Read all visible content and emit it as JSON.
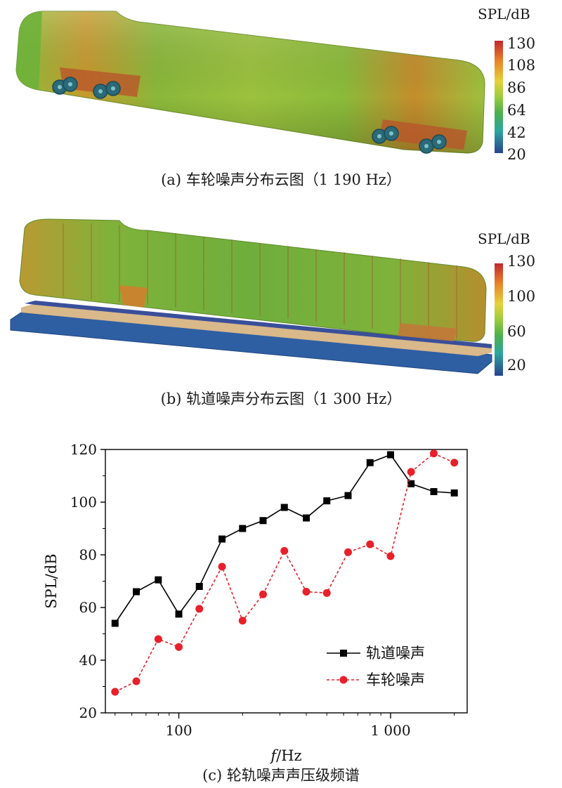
{
  "figure": {
    "panel_a": {
      "caption": "(a) 车轮噪声分布云图（1 190 Hz）",
      "colorbar": {
        "title": "SPL/dB",
        "ticks": [
          "130",
          "108",
          "86",
          "64",
          "42",
          "20"
        ],
        "colors": [
          "#c0272d",
          "#e8832a",
          "#e6d23a",
          "#9ccc3c",
          "#4db04a",
          "#2ea6a0",
          "#27438f"
        ]
      }
    },
    "panel_b": {
      "caption": "(b) 轨道噪声分布云图（1 300 Hz）",
      "colorbar": {
        "title": "SPL/dB",
        "ticks": [
          "130",
          "100",
          "60",
          "20"
        ],
        "colors": [
          "#c0272d",
          "#e8832a",
          "#e6d23a",
          "#9ccc3c",
          "#4db04a",
          "#2ea6a0",
          "#27438f"
        ]
      }
    },
    "panel_c": {
      "caption": "(c) 轮轨噪声声压级频谱"
    }
  },
  "chart_data": {
    "type": "line",
    "xlabel_italic": "f",
    "xlabel_rest": "/Hz",
    "ylabel": "SPL/dB",
    "x_scale": "log",
    "xlim": [
      45,
      2300
    ],
    "ylim": [
      20,
      120
    ],
    "xticks": [
      {
        "value": 100,
        "label": "100"
      },
      {
        "value": 1000,
        "label": "1 000"
      }
    ],
    "yticks": [
      20,
      40,
      60,
      80,
      100,
      120
    ],
    "x": [
      50,
      63,
      80,
      100,
      125,
      160,
      200,
      250,
      315,
      400,
      500,
      630,
      800,
      1000,
      1250,
      1600,
      2000
    ],
    "series": [
      {
        "name": "轨道噪声",
        "color": "#000000",
        "line": "solid",
        "marker": "square",
        "values": [
          54,
          66,
          70.5,
          57.5,
          68,
          86,
          90,
          93,
          98,
          94,
          100.5,
          102.5,
          115,
          118,
          107,
          104,
          103.5
        ]
      },
      {
        "name": "车轮噪声",
        "color": "#e8202a",
        "line": "dashed",
        "marker": "circle",
        "values": [
          28,
          32,
          48,
          45,
          59.5,
          75.5,
          55,
          65,
          81.5,
          66,
          65.5,
          81,
          84,
          79.5,
          111.5,
          118.5,
          115
        ]
      }
    ],
    "legend_position": "lower-right"
  }
}
